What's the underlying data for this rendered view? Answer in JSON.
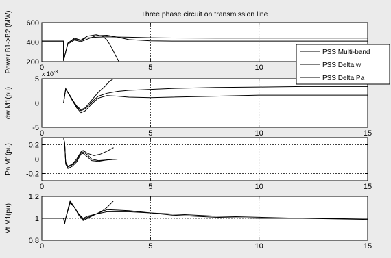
{
  "chart_data": {
    "type": "line",
    "title": "Three phase circuit on transmission line",
    "legend": {
      "placement": "right, over first panel",
      "entries": [
        "PSS  Multi-band",
        "PSS  Delta w",
        "PSS  Delta Pa"
      ]
    },
    "grid": true,
    "panels": [
      {
        "ylabel": "Power B1->B2 (MW)",
        "xlim": [
          0,
          15
        ],
        "ylim": [
          200,
          600
        ],
        "xticks": [
          0,
          5,
          10,
          15
        ],
        "xtick_labels": [
          "0",
          "5",
          "10",
          "15"
        ],
        "yticks": [
          200,
          400,
          600
        ],
        "ytick_labels": [
          "200",
          "400",
          "600"
        ],
        "series": [
          {
            "x": [
              0,
              1.0,
              1.0,
              1.1,
              1.2,
              1.5,
              1.8,
              2.0,
              2.5,
              3.0,
              3.5,
              4.0,
              5.0,
              6.0,
              8.0,
              10.0,
              15.0
            ],
            "y": [
              410,
              410,
              210,
              300,
              390,
              430,
              415,
              440,
              450,
              455,
              452,
              450,
              445,
              442,
              440,
              440,
              440
            ]
          },
          {
            "x": [
              0,
              1.0,
              1.0,
              1.1,
              1.2,
              1.5,
              1.8,
              2.1,
              2.5,
              3.0,
              3.5,
              4.0,
              5.0,
              6.0,
              8.0,
              10.0,
              15.0
            ],
            "y": [
              410,
              410,
              210,
              300,
              380,
              420,
              405,
              430,
              465,
              470,
              450,
              425,
              412,
              410,
              410,
              410,
              410
            ]
          },
          {
            "x": [
              0,
              1.0,
              1.0,
              1.1,
              1.2,
              1.5,
              1.8,
              2.1,
              2.5,
              2.8,
              3.0,
              3.2,
              3.4,
              3.55
            ],
            "y": [
              410,
              410,
              210,
              300,
              390,
              440,
              420,
              460,
              475,
              460,
              420,
              350,
              260,
              200
            ]
          }
        ]
      },
      {
        "ylabel": "dw M1(pu)",
        "xlim": [
          0,
          15
        ],
        "ylim": [
          -5,
          5
        ],
        "xticks": [
          0,
          5,
          10,
          15
        ],
        "xtick_labels": [
          "0",
          "5",
          "10",
          "15"
        ],
        "yticks": [
          -5,
          0,
          5
        ],
        "ytick_labels": [
          "-5",
          "0",
          "5"
        ],
        "exponent_label": "x 10",
        "exponent_power": "-3",
        "series": [
          {
            "x": [
              0,
              1.0,
              1.1,
              1.3,
              1.6,
              1.8,
              2.0,
              2.3,
              2.6,
              3.0,
              3.5,
              4.0,
              5.0,
              6.0,
              8.0,
              10.0,
              12.0,
              15.0
            ],
            "y": [
              0,
              0,
              2.8,
              1.5,
              -0.8,
              -1.6,
              -1.2,
              0.2,
              1.4,
              2.0,
              2.4,
              2.6,
              2.8,
              3.0,
              3.2,
              3.3,
              3.4,
              3.4
            ]
          },
          {
            "x": [
              0,
              1.0,
              1.1,
              1.3,
              1.6,
              1.8,
              2.0,
              2.3,
              2.6,
              3.0,
              3.5,
              4.0,
              5.0,
              6.0,
              8.0,
              10.0,
              12.0,
              15.0
            ],
            "y": [
              0,
              0,
              2.9,
              1.3,
              -1.0,
              -2.0,
              -1.6,
              -0.2,
              1.0,
              1.5,
              1.4,
              1.2,
              1.1,
              1.2,
              1.4,
              1.6,
              1.6,
              1.6
            ]
          },
          {
            "x": [
              0,
              1.0,
              1.1,
              1.3,
              1.6,
              1.8,
              2.0,
              2.3,
              2.6,
              2.9,
              3.1,
              3.3
            ],
            "y": [
              0,
              0,
              3.0,
              1.4,
              -0.6,
              -1.4,
              -1.0,
              0.6,
              2.2,
              3.4,
              4.4,
              5.0
            ]
          }
        ]
      },
      {
        "ylabel": "Pa M1(pu)",
        "xlim": [
          0,
          15
        ],
        "ylim": [
          -0.3,
          0.3
        ],
        "xticks": [
          0,
          5,
          10,
          15
        ],
        "xtick_labels": [
          "0",
          "5",
          "10",
          "15"
        ],
        "yticks": [
          -0.2,
          0,
          0.2
        ],
        "ytick_labels": [
          "-0.2",
          "0",
          "0.2"
        ],
        "series": [
          {
            "x": [
              1.0,
              1.05,
              1.1,
              1.2,
              1.4,
              1.6,
              1.8,
              1.9,
              2.1,
              2.3,
              2.6,
              3.0,
              3.5,
              4.0,
              5.0,
              8.0,
              15.0
            ],
            "y": [
              0.3,
              0.22,
              -0.05,
              -0.11,
              -0.08,
              -0.02,
              0.09,
              0.1,
              0.06,
              0.0,
              -0.02,
              -0.01,
              0.0,
              0.0,
              0.0,
              0.0,
              0.0
            ]
          },
          {
            "x": [
              1.0,
              1.05,
              1.1,
              1.2,
              1.4,
              1.6,
              1.8,
              1.9,
              2.1,
              2.3,
              2.6,
              3.0,
              3.5,
              4.0,
              5.0,
              8.0,
              15.0
            ],
            "y": [
              0.3,
              0.22,
              -0.07,
              -0.13,
              -0.1,
              -0.04,
              0.07,
              0.08,
              0.03,
              -0.02,
              -0.03,
              -0.01,
              0.0,
              0.0,
              0.0,
              0.0,
              0.0
            ]
          },
          {
            "x": [
              1.0,
              1.05,
              1.1,
              1.2,
              1.4,
              1.6,
              1.8,
              1.9,
              2.1,
              2.4,
              2.7,
              3.0,
              3.3
            ],
            "y": [
              0.3,
              0.22,
              -0.04,
              -0.1,
              -0.07,
              0.0,
              0.1,
              0.12,
              0.08,
              0.05,
              0.07,
              0.11,
              0.16
            ]
          }
        ]
      },
      {
        "ylabel": "Vt M1(pu)",
        "xlim": [
          0,
          15
        ],
        "ylim": [
          0.8,
          1.2
        ],
        "xticks": [
          0,
          5,
          10,
          15
        ],
        "xtick_labels": [
          "0",
          "5",
          "10",
          "15"
        ],
        "yticks": [
          0.8,
          1,
          1.2
        ],
        "ytick_labels": [
          "0.8",
          "1",
          "1.2"
        ],
        "series": [
          {
            "x": [
              0,
              1.0,
              1.05,
              1.1,
              1.3,
              1.5,
              1.7,
              1.9,
              2.1,
              2.5,
              3.0,
              4.0,
              5.0,
              6.0,
              8.0,
              10.0,
              12.0,
              15.0
            ],
            "y": [
              1.0,
              1.0,
              0.95,
              1.0,
              1.15,
              1.1,
              1.04,
              0.99,
              1.01,
              1.04,
              1.06,
              1.06,
              1.05,
              1.04,
              1.02,
              1.01,
              1.0,
              0.99
            ]
          },
          {
            "x": [
              0,
              1.0,
              1.05,
              1.1,
              1.3,
              1.5,
              1.7,
              1.9,
              2.1,
              2.5,
              3.0,
              4.0,
              5.0,
              6.0,
              8.0,
              10.0,
              12.0,
              15.0
            ],
            "y": [
              1.0,
              1.0,
              0.96,
              1.0,
              1.14,
              1.1,
              1.03,
              0.98,
              1.0,
              1.04,
              1.08,
              1.07,
              1.05,
              1.03,
              1.01,
              1.0,
              1.0,
              1.0
            ]
          },
          {
            "x": [
              1.0,
              1.05,
              1.1,
              1.3,
              1.5,
              1.7,
              1.9,
              2.1,
              2.5,
              2.8,
              3.0,
              3.3
            ],
            "y": [
              1.0,
              0.95,
              1.0,
              1.16,
              1.1,
              1.04,
              1.0,
              1.02,
              1.04,
              1.07,
              1.1,
              1.16
            ]
          }
        ]
      }
    ]
  }
}
